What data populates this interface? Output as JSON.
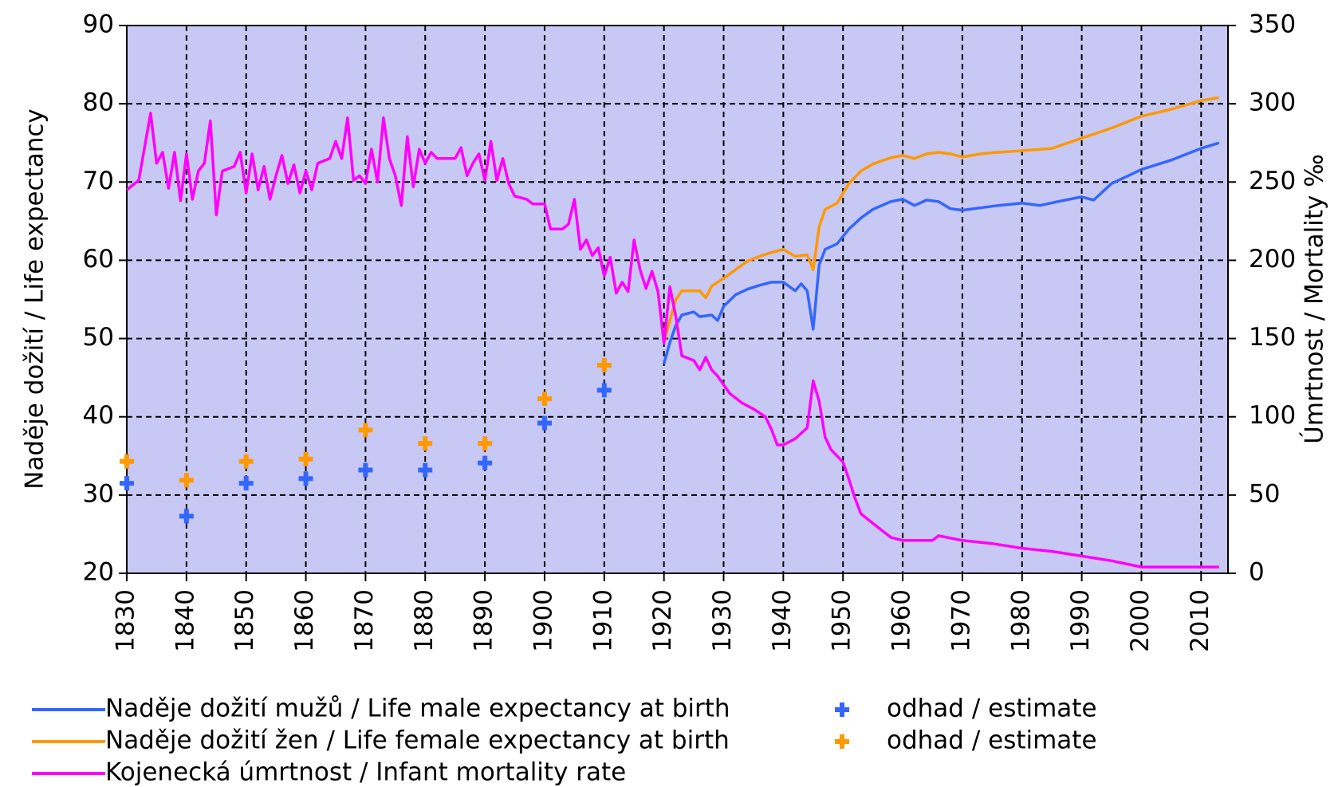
{
  "chart_data": {
    "type": "line",
    "x_label": null,
    "y_label": "Naděje dožití / Life expectancy",
    "y2_label": "Úmrtnost / Mortality ‰",
    "xlim": [
      1830,
      2014.5
    ],
    "xticks": [
      1830,
      1840,
      1850,
      1860,
      1870,
      1880,
      1890,
      1900,
      1910,
      1920,
      1930,
      1940,
      1950,
      1960,
      1970,
      1980,
      1990,
      2000,
      2010
    ],
    "ylim": [
      20,
      90
    ],
    "yticks": [
      20,
      30,
      40,
      50,
      60,
      70,
      80,
      90
    ],
    "y2lim": [
      0,
      350
    ],
    "y2ticks": [
      0,
      50,
      100,
      150,
      200,
      250,
      300,
      350
    ],
    "grid": true,
    "series": [
      {
        "name": "Naděje dožití mužů / Life male expectancy at birth",
        "type": "line",
        "color": "#3366ff",
        "x": [
          1920,
          1921,
          1922,
          1923,
          1925,
          1926,
          1928,
          1929,
          1930,
          1932,
          1934,
          1936,
          1938,
          1940,
          1942,
          1943,
          1944,
          1945,
          1946,
          1947,
          1949,
          1951,
          1953,
          1955,
          1958,
          1960,
          1962,
          1964,
          1966,
          1968,
          1970,
          1973,
          1976,
          1980,
          1983,
          1986,
          1990,
          1992,
          1995,
          2000,
          2005,
          2010,
          2013
        ],
        "values": [
          46.8,
          49.5,
          51.7,
          53,
          53.4,
          52.8,
          53,
          52.3,
          54.1,
          55.6,
          56.3,
          56.8,
          57.2,
          57.2,
          56.1,
          57,
          56.1,
          51.2,
          59.4,
          61.4,
          62.1,
          64,
          65.4,
          66.5,
          67.5,
          67.8,
          67,
          67.7,
          67.5,
          66.6,
          66.4,
          66.7,
          67,
          67.3,
          67,
          67.5,
          68.1,
          67.7,
          69.8,
          71.6,
          72.8,
          74.3,
          75
        ]
      },
      {
        "name": "Naděje dožití žen / Life female expectancy at birth",
        "type": "line",
        "color": "#ff9900",
        "x": [
          1920,
          1921,
          1922,
          1923,
          1926,
          1927,
          1928,
          1930,
          1932,
          1934,
          1936,
          1938,
          1940,
          1942,
          1944,
          1945,
          1946,
          1947,
          1949,
          1951,
          1953,
          1955,
          1958,
          1960,
          1962,
          1964,
          1966,
          1968,
          1970,
          1973,
          1976,
          1980,
          1985,
          1990,
          1995,
          2000,
          2005,
          2010,
          2013
        ],
        "values": [
          49.5,
          52.3,
          55,
          56.1,
          56.1,
          55.2,
          56.7,
          57.7,
          58.8,
          59.9,
          60.5,
          61,
          61.4,
          60.5,
          60.7,
          58.8,
          64.3,
          66.5,
          67.3,
          69.8,
          71.4,
          72.3,
          73.1,
          73.4,
          73,
          73.6,
          73.8,
          73.6,
          73.2,
          73.6,
          73.8,
          74,
          74.3,
          75.6,
          76.9,
          78.4,
          79.3,
          80.4,
          80.8
        ]
      },
      {
        "name": "Kojenecká úmrtnost / Infant mortality rate",
        "type": "line",
        "color": "#ff00ff",
        "axis": "y2",
        "x": [
          1830,
          1832,
          1834,
          1835,
          1836,
          1837,
          1838,
          1839,
          1840,
          1841,
          1842,
          1843,
          1844,
          1845,
          1846,
          1848,
          1849,
          1850,
          1851,
          1852,
          1853,
          1854,
          1855,
          1856,
          1857,
          1858,
          1859,
          1860,
          1861,
          1862,
          1864,
          1865,
          1866,
          1867,
          1868,
          1869,
          1870,
          1871,
          1872,
          1873,
          1874,
          1875,
          1876,
          1877,
          1878,
          1879,
          1880,
          1881,
          1882,
          1885,
          1886,
          1887,
          1888,
          1889,
          1890,
          1891,
          1892,
          1893,
          1894,
          1895,
          1897,
          1898,
          1900,
          1901,
          1903,
          1904,
          1905,
          1906,
          1907,
          1908,
          1909,
          1910,
          1911,
          1912,
          1913,
          1914,
          1915,
          1916,
          1917,
          1918,
          1919,
          1920,
          1921,
          1922,
          1923,
          1925,
          1926,
          1927,
          1928,
          1929,
          1931,
          1933,
          1935,
          1937,
          1938,
          1939,
          1940,
          1942,
          1944,
          1945,
          1946,
          1947,
          1948,
          1950,
          1951,
          1952,
          1953,
          1955,
          1958,
          1960,
          1965,
          1966,
          1970,
          1975,
          1980,
          1985,
          1990,
          1995,
          2000,
          2005,
          2013
        ],
        "values": [
          245,
          251,
          294,
          262,
          269,
          246,
          269,
          238,
          268,
          239,
          257,
          262,
          289,
          229,
          257,
          260,
          269,
          243,
          268,
          245,
          260,
          239,
          254,
          267,
          249,
          261,
          243,
          257,
          245,
          262,
          265,
          276,
          265,
          291,
          251,
          254,
          249,
          271,
          250,
          291,
          265,
          254,
          235,
          279,
          247,
          271,
          262,
          269,
          265,
          265,
          272,
          254,
          262,
          268,
          251,
          276,
          251,
          265,
          249,
          241,
          239,
          236,
          236,
          220,
          220,
          223,
          239,
          207,
          213,
          203,
          208,
          190,
          202,
          179,
          186,
          180,
          213,
          194,
          182,
          193,
          180,
          147,
          183,
          164,
          139,
          136,
          130,
          138,
          130,
          126,
          115,
          109,
          105,
          100,
          92,
          82,
          82,
          86,
          93,
          123,
          110,
          87,
          79,
          71,
          60,
          48,
          38,
          32,
          23,
          21,
          21,
          24,
          21,
          19,
          16,
          14,
          11,
          8,
          4,
          4,
          4
        ]
      },
      {
        "name": "odhad / estimate",
        "type": "scatter",
        "color": "#3366ff",
        "x": [
          1830,
          1840,
          1850,
          1860,
          1870,
          1880,
          1890,
          1900,
          1910
        ],
        "values": [
          31.5,
          27.3,
          31.5,
          32.1,
          33.2,
          33.2,
          34.1,
          39.2,
          43.4
        ]
      },
      {
        "name": "odhad / estimate",
        "type": "scatter",
        "color": "#ff9900",
        "x": [
          1830,
          1840,
          1850,
          1860,
          1870,
          1880,
          1890,
          1900,
          1910
        ],
        "values": [
          34.3,
          31.9,
          34.3,
          34.6,
          38.3,
          36.6,
          36.6,
          42.3,
          46.6
        ]
      }
    ]
  }
}
